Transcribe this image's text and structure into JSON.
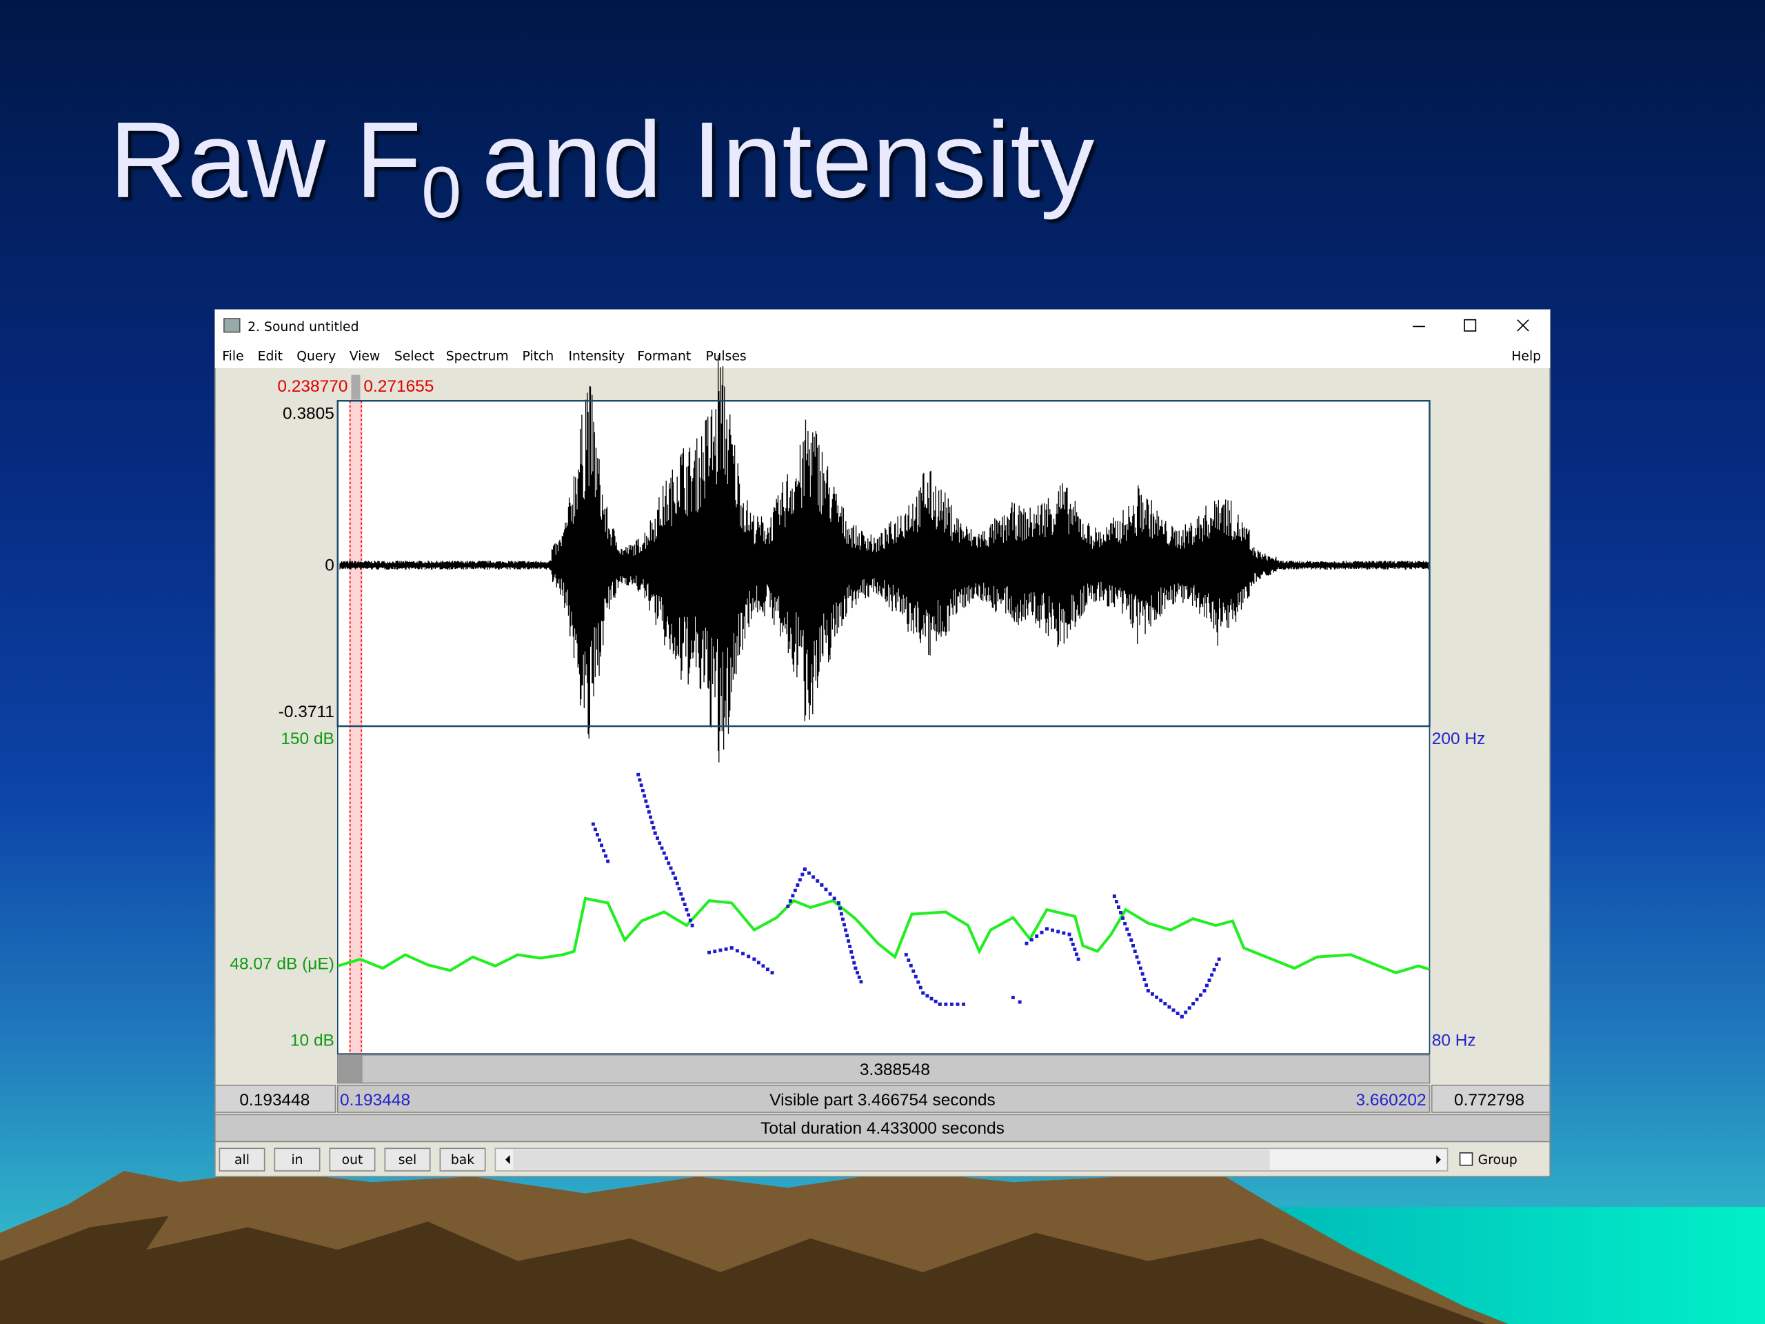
{
  "slide": {
    "title": {
      "main": "Raw F",
      "subscript": "0",
      "rest": "and Intensity"
    }
  },
  "window": {
    "title": "2. Sound untitled",
    "menu": [
      "File",
      "Edit",
      "Query",
      "View",
      "Select",
      "Spectrum",
      "Pitch",
      "Intensity",
      "Formant",
      "Pulses"
    ],
    "help": "Help"
  },
  "editor": {
    "selection_start": "0.238770",
    "selection_end": "0.271655",
    "wave_max": "0.3805",
    "wave_zero": "0",
    "wave_min": "-0.3711",
    "intensity_top": "150 dB",
    "intensity_mid": "48.07 dB (μE)",
    "intensity_bottom": "10 dB",
    "pitch_top": "200 Hz",
    "pitch_bottom": "80 Hz",
    "segment_duration": "3.388548",
    "left_outside": "0.193448",
    "visible_start": "0.193448",
    "visible_part": "Visible part 3.466754 seconds",
    "visible_end": "3.660202",
    "right_outside": "0.772798",
    "total_duration": "Total duration 4.433000 seconds"
  },
  "buttons": [
    "all",
    "in",
    "out",
    "sel",
    "bak"
  ],
  "group": "Group"
}
